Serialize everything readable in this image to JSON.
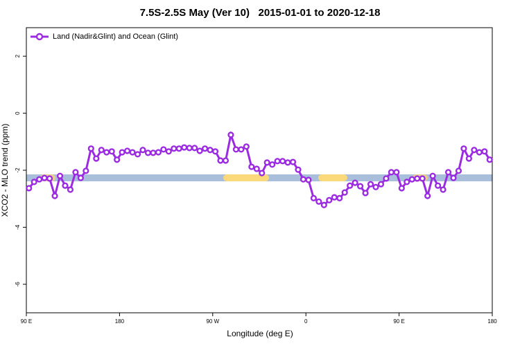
{
  "chart_data": {
    "type": "line",
    "title": "7.5S-2.5S May (Ver 10)   2015-01-01 to 2020-12-18",
    "x_label": "Longitude (deg E)",
    "y_label": "XCO2 - MLO trend (ppm)",
    "xlim": [
      90,
      540
    ],
    "ylim": [
      -7,
      3
    ],
    "xticks": [
      {
        "value": 90,
        "label": "90 E"
      },
      180,
      {
        "value": 270,
        "label": "90 W"
      },
      {
        "value": 360,
        "label": "0"
      },
      {
        "value": 450,
        "label": "90 E"
      },
      {
        "value": 540,
        "label": "180"
      }
    ],
    "yticks": [
      2,
      0,
      -2,
      -4,
      -6
    ],
    "legend": "top-left",
    "x": [
      92.5,
      97.5,
      102.5,
      107.5,
      112.5,
      117.5,
      122.5,
      127.5,
      132.5,
      137.5,
      142.5,
      147.5,
      152.5,
      157.5,
      162.5,
      167.5,
      172.5,
      177.5,
      182.5,
      187.5,
      192.5,
      197.5,
      202.5,
      207.5,
      212.5,
      217.5,
      222.5,
      227.5,
      232.5,
      237.5,
      242.5,
      247.5,
      252.5,
      257.5,
      262.5,
      267.5,
      272.5,
      277.5,
      282.5,
      287.5,
      292.5,
      297.5,
      302.5,
      307.5,
      312.5,
      317.5,
      322.5,
      327.5,
      332.5,
      337.5,
      342.5,
      347.5,
      352.5,
      357.5,
      362.5,
      367.5,
      372.5,
      377.5,
      382.5,
      387.5,
      392.5,
      397.5,
      402.5,
      407.5,
      412.5,
      417.5,
      422.5,
      427.5,
      432.5,
      437.5,
      442.5,
      447.5,
      452.5,
      457.5,
      462.5,
      467.5,
      472.5,
      477.5,
      482.5,
      487.5,
      492.5,
      497.5,
      502.5,
      507.5,
      512.5,
      517.5,
      522.5,
      527.5,
      532.5,
      537.5
    ],
    "series": [
      {
        "name": "Land (Nadir&Glint) and Ocean (Glint)",
        "color": "#9b2be0",
        "values": [
          -2.63,
          -2.41,
          -2.32,
          -2.27,
          -2.29,
          -2.9,
          -2.2,
          -2.54,
          -2.68,
          -2.07,
          -2.27,
          -2.02,
          -1.24,
          -1.59,
          -1.29,
          -1.37,
          -1.34,
          -1.63,
          -1.37,
          -1.32,
          -1.37,
          -1.44,
          -1.29,
          -1.39,
          -1.39,
          -1.37,
          -1.27,
          -1.34,
          -1.24,
          -1.24,
          -1.2,
          -1.22,
          -1.22,
          -1.32,
          -1.24,
          -1.29,
          -1.34,
          -1.66,
          -1.66,
          -0.76,
          -1.27,
          -1.27,
          -1.17,
          -1.88,
          -1.95,
          -2.1,
          -1.73,
          -1.8,
          -1.68,
          -1.68,
          -1.73,
          -1.71,
          -1.98,
          -2.32,
          -2.34,
          -2.98,
          -3.1,
          -3.22,
          -3.05,
          -2.95,
          -2.98,
          -2.78,
          -2.54,
          -2.44,
          -2.56,
          -2.8,
          -2.49,
          -2.59,
          -2.49,
          -2.29,
          -2.07,
          -2.07,
          -2.63,
          -2.41,
          -2.32,
          -2.29,
          -2.29,
          -2.9,
          -2.2,
          -2.54,
          -2.68,
          -2.07,
          -2.27,
          -2.02,
          -1.24,
          -1.59,
          -1.29,
          -1.37,
          -1.34,
          -1.63
        ]
      }
    ]
  }
}
